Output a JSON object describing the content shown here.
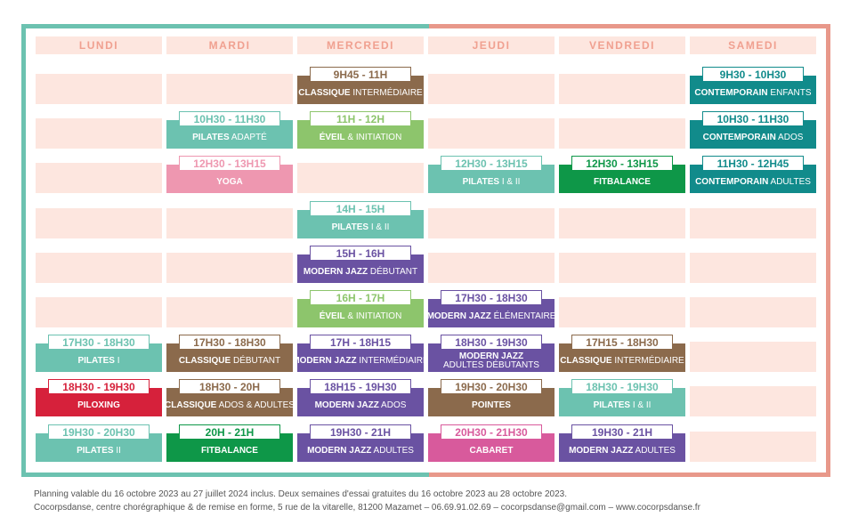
{
  "days": [
    "LUNDI",
    "MARDI",
    "MERCREDI",
    "JEUDI",
    "VENDREDI",
    "SAMEDI"
  ],
  "colors": {
    "teal": "#6cc2b0",
    "salmon": "#e8988a",
    "light_pink": "#fde6df",
    "brown": "#8b6a4c",
    "green_light": "#8dc56c",
    "green_dark": "#0e9748",
    "purple": "#6a52a2",
    "red": "#d6213b",
    "pink": "#ee97b0",
    "magenta": "#d85a9c",
    "dark_teal": "#118b8b"
  },
  "classes": [
    {
      "day": 2,
      "row": 0,
      "time": "9H45 - 11H",
      "name_bold": "CLASSIQUE",
      "name_rest": " INTERMÉDIAIRE",
      "color": "brown"
    },
    {
      "day": 5,
      "row": 0,
      "time": "9H30 - 10H30",
      "name_bold": "CONTEMPORAIN",
      "name_rest": " ENFANTS",
      "color": "dark_teal"
    },
    {
      "day": 1,
      "row": 1,
      "time": "10H30 - 11H30",
      "name_bold": "PILATES",
      "name_rest": " ADAPTÉ",
      "color": "teal"
    },
    {
      "day": 2,
      "row": 1,
      "time": "11H - 12H",
      "name_bold": "ÉVEIL",
      "name_rest": " & INITIATION",
      "color": "green_light"
    },
    {
      "day": 5,
      "row": 1,
      "time": "10H30 - 11H30",
      "name_bold": "CONTEMPORAIN",
      "name_rest": " ADOS",
      "color": "dark_teal"
    },
    {
      "day": 1,
      "row": 2,
      "time": "12H30 - 13H15",
      "name_bold": "YOGA",
      "name_rest": "",
      "color": "pink"
    },
    {
      "day": 3,
      "row": 2,
      "time": "12H30 - 13H15",
      "name_bold": "PILATES",
      "name_rest": " I & II",
      "color": "teal"
    },
    {
      "day": 4,
      "row": 2,
      "time": "12H30 - 13H15",
      "name_bold": "FITBALANCE",
      "name_rest": "",
      "color": "green_dark"
    },
    {
      "day": 5,
      "row": 2,
      "time": "11H30 - 12H45",
      "name_bold": "CONTEMPORAIN",
      "name_rest": " ADULTES",
      "color": "dark_teal"
    },
    {
      "day": 2,
      "row": 3,
      "time": "14H - 15H",
      "name_bold": "PILATES",
      "name_rest": " I & II",
      "color": "teal"
    },
    {
      "day": 2,
      "row": 4,
      "time": "15H - 16H",
      "name_bold": "MODERN JAZZ",
      "name_rest": " DÉBUTANT",
      "color": "purple"
    },
    {
      "day": 2,
      "row": 5,
      "time": "16H - 17H",
      "name_bold": "ÉVEIL",
      "name_rest": " & INITIATION",
      "color": "green_light"
    },
    {
      "day": 3,
      "row": 5,
      "time": "17H30 - 18H30",
      "name_bold": "MODERN JAZZ",
      "name_rest": " ÉLÉMENTAIRE",
      "color": "purple"
    },
    {
      "day": 0,
      "row": 6,
      "time": "17H30 - 18H30",
      "name_bold": "PILATES",
      "name_rest": " I",
      "color": "teal"
    },
    {
      "day": 1,
      "row": 6,
      "time": "17H30 - 18H30",
      "name_bold": "CLASSIQUE",
      "name_rest": " DÉBUTANT",
      "color": "brown"
    },
    {
      "day": 2,
      "row": 6,
      "time": "17H - 18H15",
      "name_bold": "MODERN JAZZ",
      "name_rest": " INTERMÉDIAIRE",
      "color": "purple"
    },
    {
      "day": 3,
      "row": 6,
      "time": "18H30 - 19H30",
      "name_bold": "MODERN JAZZ",
      "name_rest": "",
      "name_line2": "ADULTES DÉBUTANTS",
      "color": "purple"
    },
    {
      "day": 4,
      "row": 6,
      "time": "17H15 - 18H30",
      "name_bold": "CLASSIQUE",
      "name_rest": " INTERMÉDIAIRE",
      "color": "brown"
    },
    {
      "day": 0,
      "row": 7,
      "time": "18H30 - 19H30",
      "name_bold": "PILOXING",
      "name_rest": "",
      "color": "red"
    },
    {
      "day": 1,
      "row": 7,
      "time": "18H30 - 20H",
      "name_bold": "CLASSIQUE",
      "name_rest": " ADOS & ADULTES",
      "color": "brown"
    },
    {
      "day": 2,
      "row": 7,
      "time": "18H15 - 19H30",
      "name_bold": "MODERN JAZZ",
      "name_rest": " ADOS",
      "color": "purple"
    },
    {
      "day": 3,
      "row": 7,
      "time": "19H30 - 20H30",
      "name_bold": "POINTES",
      "name_rest": "",
      "color": "brown"
    },
    {
      "day": 4,
      "row": 7,
      "time": "18H30 - 19H30",
      "name_bold": "PILATES",
      "name_rest": " I & II",
      "color": "teal"
    },
    {
      "day": 0,
      "row": 8,
      "time": "19H30 - 20H30",
      "name_bold": "PILATES",
      "name_rest": " II",
      "color": "teal"
    },
    {
      "day": 1,
      "row": 8,
      "time": "20H - 21H",
      "name_bold": "FITBALANCE",
      "name_rest": "",
      "color": "green_dark"
    },
    {
      "day": 2,
      "row": 8,
      "time": "19H30 - 21H",
      "name_bold": "MODERN JAZZ",
      "name_rest": " ADULTES",
      "color": "purple"
    },
    {
      "day": 3,
      "row": 8,
      "time": "20H30 - 21H30",
      "name_bold": "CABARET",
      "name_rest": "",
      "color": "magenta"
    },
    {
      "day": 4,
      "row": 8,
      "time": "19H30 - 21H",
      "name_bold": "MODERN JAZZ",
      "name_rest": " ADULTES",
      "color": "purple"
    }
  ],
  "footer": {
    "line1": "Planning valable du 16 octobre 2023 au 27 juillet 2024 inclus. Deux semaines d'essai gratuites du 16 octobre 2023 au 28 octobre 2023.",
    "line2": "Cocorpsdanse, centre chorégraphique & de remise en forme, 5 rue de la vitarelle, 81200 Mazamet – 06.69.91.02.69 – cocorpsdanse@gmail.com – www.cocorpsdanse.fr"
  }
}
